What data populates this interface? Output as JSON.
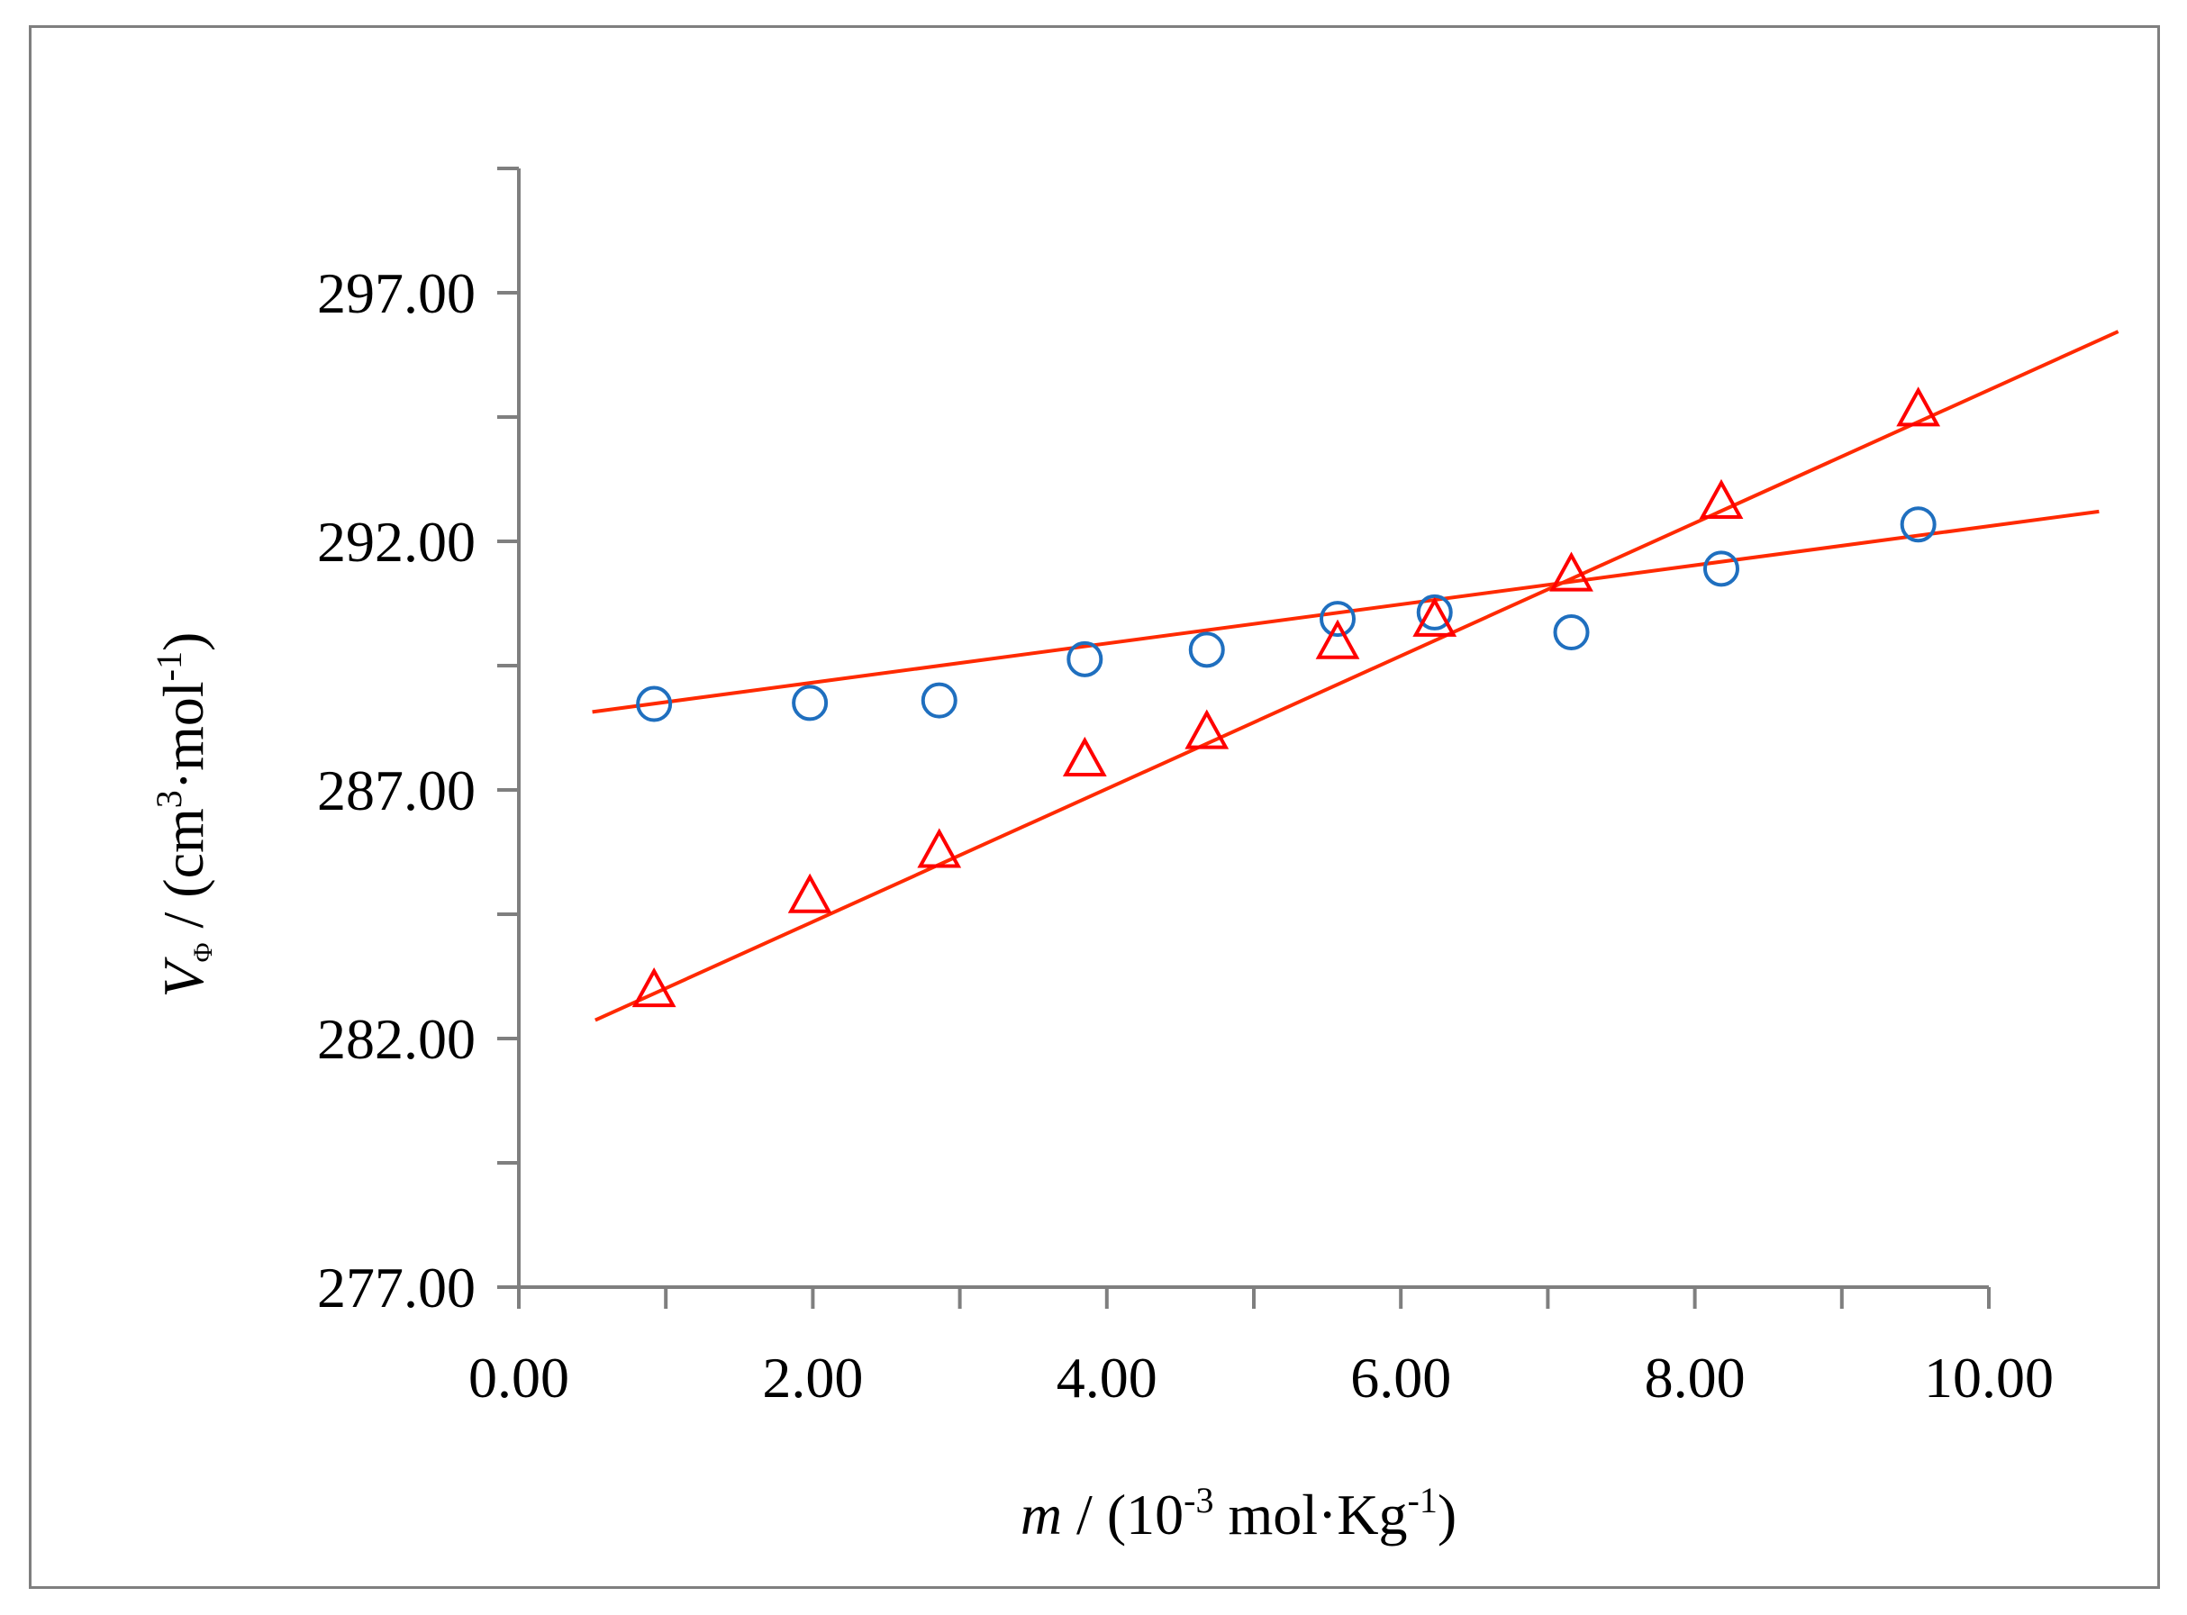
{
  "chart_data": {
    "type": "scatter",
    "title": "",
    "xlabel": {
      "var": "m",
      "pre": " / (10",
      "sup1": "-3",
      "mid": " mol·Kg",
      "sup2": "-1",
      "post": ")"
    },
    "ylabel": {
      "var": "V",
      "sub": "Φ",
      "pre": " / (cm",
      "sup1": "3",
      "mid": "·mol",
      "sup2": "-1",
      "post": ")"
    },
    "xlim": [
      0,
      10
    ],
    "ylim": [
      277,
      300
    ],
    "xticks": [
      0,
      2,
      4,
      6,
      8,
      10
    ],
    "xtick_labels": [
      "0.00",
      "2.00",
      "4.00",
      "6.00",
      "8.00",
      "10.00"
    ],
    "x_minor_ticks": [
      1,
      3,
      5,
      7,
      9
    ],
    "yticks": [
      277,
      282,
      287,
      292,
      297
    ],
    "ytick_labels": [
      "277.00",
      "282.00",
      "287.00",
      "292.00",
      "297.00"
    ],
    "y_minor_ticks": [
      279.5,
      284.5,
      289.5,
      294.5,
      299.5
    ],
    "grid": false,
    "legend": "none",
    "series": [
      {
        "name": "circles",
        "marker": "circle",
        "color": "#1f6fbf",
        "x": [
          0.92,
          1.98,
          2.86,
          3.85,
          4.68,
          5.57,
          6.23,
          7.16,
          8.18,
          9.52
        ],
        "y": [
          288.73,
          288.75,
          288.8,
          289.63,
          289.82,
          290.44,
          290.57,
          290.17,
          291.45,
          292.34
        ],
        "fit": {
          "x": [
            0.5,
            10.75
          ],
          "y": [
            288.57,
            292.6
          ],
          "color": "#ff2a00"
        }
      },
      {
        "name": "triangles",
        "marker": "triangle",
        "color": "#ff0000",
        "x": [
          0.92,
          1.98,
          2.86,
          3.85,
          4.68,
          5.57,
          6.23,
          7.16,
          8.18,
          9.52
        ],
        "y": [
          282.93,
          284.82,
          285.73,
          287.57,
          288.12,
          289.93,
          290.38,
          291.29,
          292.75,
          294.61
        ],
        "fit": {
          "x": [
            0.52,
            10.88
          ],
          "y": [
            282.37,
            296.22
          ],
          "color": "#ff2a00"
        }
      }
    ]
  }
}
